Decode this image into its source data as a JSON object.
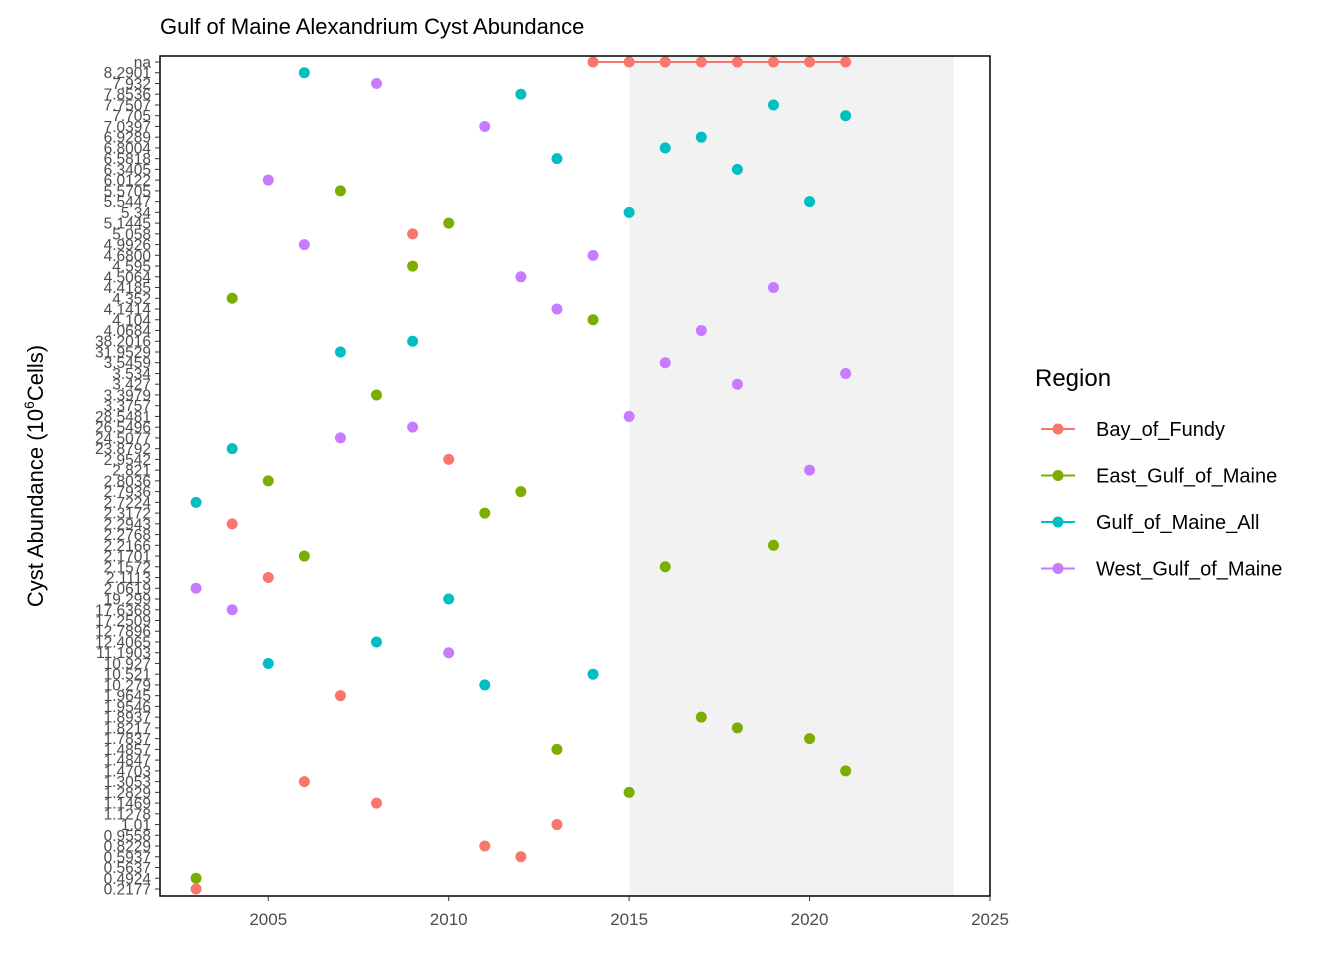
{
  "chart_data": {
    "type": "scatter",
    "title": "Gulf of Maine Alexandrium Cyst Abundance",
    "ylabel_prefix": "Cyst Abundance (10",
    "ylabel_sup": "6",
    "ylabel_suffix": "Cells)",
    "xlabel": "",
    "xlim": [
      2002,
      2025
    ],
    "x_ticks": [
      2005,
      2010,
      2015,
      2020,
      2025
    ],
    "shaded_region": {
      "x_start": 2015,
      "x_end": 2024,
      "color": "#f2f2f2"
    },
    "y_axis_type": "categorical",
    "y_categories": [
      "0.2177",
      "0.4924",
      "0.5637",
      "0.5937",
      "0.8229",
      "0.9558",
      "1.01",
      "1.1278",
      "1.1469",
      "1.2829",
      "1.3053",
      "1.4703",
      "1.4847",
      "1.4857",
      "1.7837",
      "1.8217",
      "1.8937",
      "1.9546",
      "1.9645",
      "10.279",
      "10.521",
      "10.927",
      "11.1903",
      "12.4065",
      "12.7896",
      "17.2509",
      "17.6368",
      "19.299",
      "2.0619",
      "2.1113",
      "2.1572",
      "2.1701",
      "2.2166",
      "2.2768",
      "2.2943",
      "2.3172",
      "2.7224",
      "2.7936",
      "2.8036",
      "2.821",
      "2.9542",
      "23.8792",
      "24.5077",
      "26.5496",
      "28.5481",
      "3.3757",
      "3.3979",
      "3.427",
      "3.534",
      "3.5459",
      "31.9529",
      "38.2016",
      "4.0684",
      "4.104",
      "4.1414",
      "4.352",
      "4.4185",
      "4.5064",
      "4.595",
      "4.6800",
      "4.9926",
      "5.058",
      "5.1445",
      "5.34",
      "5.5447",
      "5.5705",
      "6.0122",
      "6.3405",
      "6.5818",
      "6.8004",
      "6.9289",
      "7.0397",
      "7.705",
      "7.7507",
      "7.8536",
      "7.932",
      "8.2901",
      "na"
    ],
    "series": [
      {
        "name": "Bay_of_Fundy",
        "color": "#F8766D",
        "connect_line": true,
        "points": [
          {
            "x": 2003,
            "y": "0.2177"
          },
          {
            "x": 2004,
            "y": "2.2943"
          },
          {
            "x": 2005,
            "y": "2.1113"
          },
          {
            "x": 2006,
            "y": "1.3053"
          },
          {
            "x": 2007,
            "y": "1.9645"
          },
          {
            "x": 2008,
            "y": "1.1469"
          },
          {
            "x": 2009,
            "y": "5.058"
          },
          {
            "x": 2010,
            "y": "2.9542"
          },
          {
            "x": 2011,
            "y": "0.8229"
          },
          {
            "x": 2012,
            "y": "0.5937"
          },
          {
            "x": 2013,
            "y": "1.01"
          },
          {
            "x": 2014,
            "y": "na"
          },
          {
            "x": 2015,
            "y": "na"
          },
          {
            "x": 2016,
            "y": "na"
          },
          {
            "x": 2017,
            "y": "na"
          },
          {
            "x": 2018,
            "y": "na"
          },
          {
            "x": 2019,
            "y": "na"
          },
          {
            "x": 2020,
            "y": "na"
          },
          {
            "x": 2021,
            "y": "na"
          }
        ]
      },
      {
        "name": "East_Gulf_of_Maine",
        "color": "#7CAE00",
        "connect_line": false,
        "points": [
          {
            "x": 2003,
            "y": "0.4924"
          },
          {
            "x": 2004,
            "y": "4.352"
          },
          {
            "x": 2005,
            "y": "2.8036"
          },
          {
            "x": 2006,
            "y": "2.1701"
          },
          {
            "x": 2007,
            "y": "5.5705"
          },
          {
            "x": 2008,
            "y": "3.3979"
          },
          {
            "x": 2009,
            "y": "4.595"
          },
          {
            "x": 2010,
            "y": "5.1445"
          },
          {
            "x": 2011,
            "y": "2.3172"
          },
          {
            "x": 2012,
            "y": "2.7936"
          },
          {
            "x": 2013,
            "y": "1.4857"
          },
          {
            "x": 2014,
            "y": "4.104"
          },
          {
            "x": 2015,
            "y": "1.2829"
          },
          {
            "x": 2016,
            "y": "2.1572"
          },
          {
            "x": 2017,
            "y": "1.8937"
          },
          {
            "x": 2018,
            "y": "1.8217"
          },
          {
            "x": 2019,
            "y": "2.2166"
          },
          {
            "x": 2020,
            "y": "1.7837"
          },
          {
            "x": 2021,
            "y": "1.4703"
          }
        ]
      },
      {
        "name": "Gulf_of_Maine_All",
        "color": "#00BFC4",
        "connect_line": false,
        "points": [
          {
            "x": 2003,
            "y": "2.7224"
          },
          {
            "x": 2004,
            "y": "23.8792"
          },
          {
            "x": 2005,
            "y": "10.927"
          },
          {
            "x": 2006,
            "y": "8.2901"
          },
          {
            "x": 2007,
            "y": "31.9529"
          },
          {
            "x": 2008,
            "y": "12.4065"
          },
          {
            "x": 2009,
            "y": "38.2016"
          },
          {
            "x": 2010,
            "y": "19.299"
          },
          {
            "x": 2011,
            "y": "10.279"
          },
          {
            "x": 2012,
            "y": "7.8536"
          },
          {
            "x": 2013,
            "y": "6.5818"
          },
          {
            "x": 2014,
            "y": "10.521"
          },
          {
            "x": 2015,
            "y": "5.34"
          },
          {
            "x": 2016,
            "y": "6.8004"
          },
          {
            "x": 2017,
            "y": "6.9289"
          },
          {
            "x": 2018,
            "y": "6.3405"
          },
          {
            "x": 2019,
            "y": "7.7507"
          },
          {
            "x": 2020,
            "y": "5.5447"
          },
          {
            "x": 2021,
            "y": "7.705"
          }
        ]
      },
      {
        "name": "West_Gulf_of_Maine",
        "color": "#C77CFF",
        "connect_line": false,
        "points": [
          {
            "x": 2003,
            "y": "2.0619"
          },
          {
            "x": 2004,
            "y": "17.6368"
          },
          {
            "x": 2005,
            "y": "6.0122"
          },
          {
            "x": 2006,
            "y": "4.9926"
          },
          {
            "x": 2007,
            "y": "24.5077"
          },
          {
            "x": 2008,
            "y": "7.932"
          },
          {
            "x": 2009,
            "y": "26.5496"
          },
          {
            "x": 2010,
            "y": "11.1903"
          },
          {
            "x": 2011,
            "y": "7.0397"
          },
          {
            "x": 2012,
            "y": "4.5064"
          },
          {
            "x": 2013,
            "y": "4.1414"
          },
          {
            "x": 2014,
            "y": "4.6800"
          },
          {
            "x": 2015,
            "y": "28.5481"
          },
          {
            "x": 2016,
            "y": "3.5459"
          },
          {
            "x": 2017,
            "y": "4.0684"
          },
          {
            "x": 2018,
            "y": "3.427"
          },
          {
            "x": 2019,
            "y": "4.4185"
          },
          {
            "x": 2020,
            "y": "2.821"
          },
          {
            "x": 2021,
            "y": "3.534"
          }
        ]
      }
    ],
    "legend": {
      "title": "Region",
      "placement": "right"
    },
    "grid": false
  }
}
